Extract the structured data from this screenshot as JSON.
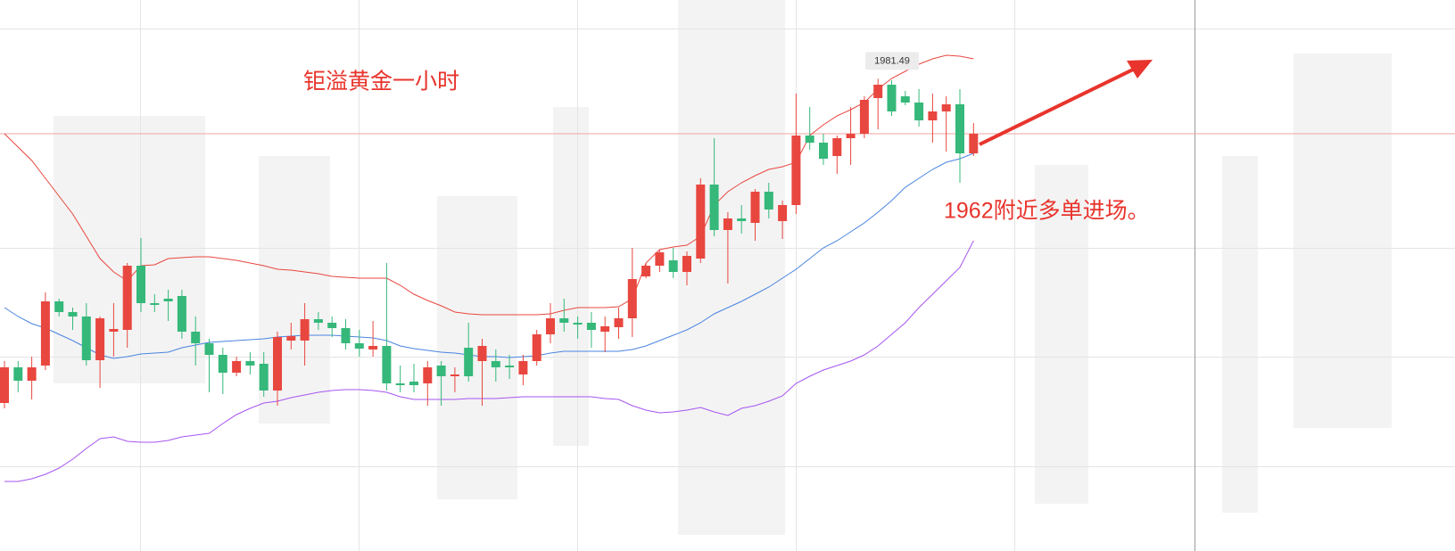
{
  "chart_data": {
    "type": "candlestick",
    "title": "钜溢黄金一小时",
    "annotation": "1962附近多单进场。",
    "high_label": {
      "value": 1981.49,
      "label": "1981.49"
    },
    "price_line": 1963.0,
    "ylim": [
      1822.6,
      2008
    ],
    "up_color": "#e8473f",
    "down_color": "#35b87a",
    "open": [
      1872.4,
      1884.4,
      1879.9,
      1885.0,
      1906.6,
      1903.0,
      1901.5,
      1886.8,
      1896.4,
      1897.0,
      1918.6,
      1906.0,
      1907.5,
      1908.4,
      1896.4,
      1892.5,
      1888.6,
      1882.6,
      1886.5,
      1885.6,
      1876.6,
      1893.4,
      1893.4,
      1900.6,
      1899.4,
      1897.6,
      1892.5,
      1890.4,
      1891.6,
      1879.0,
      1879.6,
      1879.0,
      1885.0,
      1881.4,
      1891.0,
      1886.5,
      1886.5,
      1885.0,
      1882.0,
      1886.5,
      1895.5,
      1900.9,
      1899.4,
      1899.4,
      1896.4,
      1897.9,
      1900.9,
      1915.0,
      1918.6,
      1920.4,
      1916.5,
      1921.0,
      1945.9,
      1930.6,
      1934.5,
      1933.0,
      1943.5,
      1933.6,
      1939.0,
      1962.4,
      1960.0,
      1955.5,
      1961.5,
      1963.0,
      1975.0,
      1979.5,
      1975.6,
      1973.5,
      1967.5,
      1970.5,
      1972.9,
      1956.4
    ],
    "high": [
      1886.5,
      1886.5,
      1888.0,
      1909.6,
      1907.5,
      1904.5,
      1906.0,
      1901.5,
      1906.0,
      1919.5,
      1927.9,
      1909.0,
      1910.5,
      1910.5,
      1901.5,
      1894.0,
      1891.0,
      1888.0,
      1889.5,
      1889.5,
      1896.4,
      1899.4,
      1906.0,
      1903.0,
      1901.5,
      1900.6,
      1897.0,
      1900.0,
      1919.5,
      1885.0,
      1885.6,
      1886.5,
      1886.5,
      1884.4,
      1899.4,
      1894.0,
      1890.4,
      1888.6,
      1888.6,
      1897.0,
      1906.0,
      1907.5,
      1901.5,
      1903.0,
      1901.5,
      1904.5,
      1924.6,
      1919.5,
      1924.0,
      1924.6,
      1923.4,
      1948.0,
      1961.5,
      1936.6,
      1939.0,
      1944.4,
      1946.5,
      1940.5,
      1976.5,
      1972.0,
      1963.0,
      1962.4,
      1972.0,
      1975.6,
      1981.49,
      1981.0,
      1977.4,
      1978.0,
      1976.5,
      1975.6,
      1978.0,
      1966.6
    ],
    "low": [
      1870.6,
      1876.0,
      1873.6,
      1883.5,
      1901.5,
      1897.0,
      1885.0,
      1877.5,
      1888.0,
      1891.0,
      1903.0,
      1903.0,
      1900.0,
      1894.0,
      1885.0,
      1876.0,
      1875.4,
      1881.4,
      1882.0,
      1874.5,
      1871.5,
      1890.4,
      1885.0,
      1897.0,
      1894.6,
      1890.4,
      1888.0,
      1888.0,
      1876.6,
      1876.0,
      1876.0,
      1871.5,
      1871.5,
      1876.0,
      1879.6,
      1871.5,
      1879.6,
      1880.5,
      1878.4,
      1885.0,
      1892.5,
      1896.4,
      1894.0,
      1891.0,
      1889.5,
      1894.0,
      1894.6,
      1914.4,
      1916.5,
      1914.4,
      1912.0,
      1919.5,
      1928.5,
      1912.6,
      1929.4,
      1927.0,
      1934.5,
      1927.6,
      1936.0,
      1957.6,
      1952.5,
      1949.5,
      1952.5,
      1961.5,
      1964.5,
      1969.0,
      1972.6,
      1965.4,
      1960.0,
      1957.0,
      1946.5,
      1955.5
    ],
    "close": [
      1884.4,
      1879.9,
      1884.4,
      1906.6,
      1903.0,
      1901.5,
      1886.8,
      1900.9,
      1897.3,
      1918.6,
      1906.0,
      1905.4,
      1906.6,
      1896.4,
      1892.5,
      1888.6,
      1882.6,
      1886.5,
      1885.0,
      1876.6,
      1894.6,
      1894.9,
      1900.6,
      1899.4,
      1897.6,
      1892.5,
      1890.7,
      1891.6,
      1879.0,
      1878.4,
      1878.4,
      1884.4,
      1881.4,
      1882.0,
      1881.4,
      1891.6,
      1884.4,
      1884.4,
      1886.5,
      1895.5,
      1900.9,
      1899.4,
      1898.8,
      1897.0,
      1898.2,
      1900.9,
      1914.1,
      1918.6,
      1923.1,
      1916.5,
      1921.9,
      1945.9,
      1930.6,
      1934.5,
      1933.6,
      1943.5,
      1937.5,
      1939.0,
      1962.4,
      1960.0,
      1954.6,
      1961.5,
      1963.0,
      1974.4,
      1979.5,
      1970.5,
      1973.5,
      1967.5,
      1970.5,
      1972.9,
      1956.4,
      1963.0
    ],
    "bands": [
      {
        "color": "#e8473f",
        "values": [
          1963,
          1958.5,
          1954,
          1948,
          1942,
          1936,
          1928.5,
          1921,
          1916.5,
          1913.5,
          1918.6,
          1918.9,
          1921,
          1921.3,
          1921.6,
          1921.6,
          1921,
          1920.4,
          1919.5,
          1918.6,
          1917.4,
          1917.1,
          1916.5,
          1915.9,
          1915,
          1914.7,
          1914.4,
          1914.4,
          1914.4,
          1912,
          1909,
          1906.9,
          1905.1,
          1903,
          1902.4,
          1902.1,
          1902.1,
          1902.1,
          1902.1,
          1902.1,
          1902.4,
          1903.6,
          1904.5,
          1904.5,
          1904.5,
          1904.8,
          1907.5,
          1919.5,
          1924,
          1924.9,
          1925.5,
          1928.5,
          1939,
          1943.5,
          1946.5,
          1948.9,
          1951,
          1951.9,
          1953.4,
          1962.4,
          1966,
          1969,
          1971.1,
          1973.5,
          1978,
          1981.6,
          1984,
          1986.4,
          1988.2,
          1989.4,
          1989.1,
          1988.2
        ]
      },
      {
        "color": "#4a84e0",
        "values": [
          1904.5,
          1901.5,
          1899.1,
          1897.6,
          1895.5,
          1893.4,
          1891,
          1888.6,
          1887.4,
          1888,
          1888.9,
          1889.2,
          1889.5,
          1891,
          1891.9,
          1892.8,
          1893.1,
          1893.4,
          1893.7,
          1894,
          1894.6,
          1894.9,
          1895.2,
          1895.2,
          1895.2,
          1894.9,
          1894.6,
          1894.3,
          1893.4,
          1891.6,
          1890.7,
          1890.1,
          1889.5,
          1889.2,
          1888.6,
          1888,
          1888,
          1887.7,
          1888,
          1888.3,
          1889.2,
          1889.8,
          1889.8,
          1889.8,
          1889.8,
          1889.8,
          1890.4,
          1891.6,
          1893.4,
          1895.2,
          1897,
          1899.4,
          1902.4,
          1904.5,
          1906.6,
          1909,
          1911.4,
          1914.4,
          1917.4,
          1921,
          1924.6,
          1927,
          1930,
          1933,
          1936.6,
          1940.5,
          1945,
          1948,
          1951,
          1953.4,
          1954.6,
          1956.4
        ]
      },
      {
        "color": "#a655f0",
        "values": [
          1846,
          1846,
          1846.9,
          1848.4,
          1850.5,
          1853.5,
          1857.1,
          1860.4,
          1861,
          1859.5,
          1859.2,
          1859.2,
          1859.8,
          1861,
          1861.6,
          1862.2,
          1865.5,
          1868.5,
          1870.6,
          1872.4,
          1873,
          1874.2,
          1875.1,
          1876,
          1876.6,
          1876.9,
          1876.9,
          1876.6,
          1876,
          1874.5,
          1873.6,
          1873.6,
          1873.6,
          1873.6,
          1873.9,
          1873.9,
          1873.9,
          1874.2,
          1874.5,
          1874.5,
          1874.5,
          1874.5,
          1874.5,
          1874.5,
          1873.9,
          1873.6,
          1871.5,
          1870,
          1869.1,
          1869.4,
          1870,
          1870.9,
          1869.4,
          1868.2,
          1870.6,
          1871.5,
          1873,
          1874.8,
          1879,
          1881.4,
          1883.5,
          1885,
          1886.5,
          1888.6,
          1891.6,
          1895.5,
          1899.4,
          1904.5,
          1909,
          1913.5,
          1918,
          1927
        ]
      }
    ]
  }
}
